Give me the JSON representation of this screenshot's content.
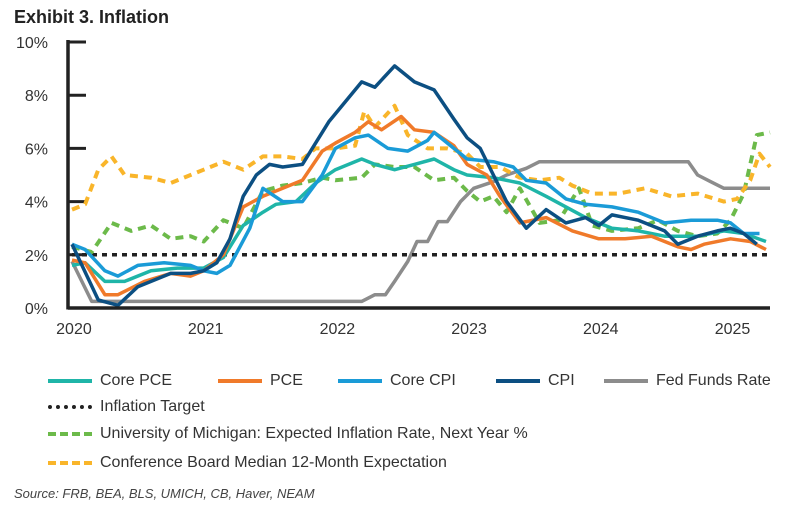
{
  "title": "Exhibit 3. Inflation",
  "source": "Source: FRB, BEA, BLS, UMICH, CB, Haver, NEAM",
  "chart_data": {
    "type": "line",
    "title": "Exhibit 3. Inflation",
    "xlabel": "",
    "ylabel": "",
    "xlim": [
      2019.97,
      2025.3
    ],
    "ylim": [
      0,
      10
    ],
    "xticks": [
      2020,
      2021,
      2022,
      2023,
      2024,
      2025
    ],
    "xtick_labels": [
      "2020",
      "2021",
      "2022",
      "2023",
      "2024",
      "2025"
    ],
    "yticks": [
      0,
      2,
      4,
      6,
      8,
      10
    ],
    "ytick_labels": [
      "0%",
      "2%",
      "4%",
      "6%",
      "8%",
      "10%"
    ],
    "legend_position": "bottom",
    "series": [
      {
        "name": "Core PCE",
        "color": "#1fb5a8",
        "style": "solid",
        "x": [
          2020.0,
          2020.1,
          2020.25,
          2020.4,
          2020.6,
          2020.8,
          2021.0,
          2021.15,
          2021.3,
          2021.45,
          2021.55,
          2021.7,
          2021.85,
          2022.0,
          2022.2,
          2022.3,
          2022.45,
          2022.6,
          2022.75,
          2022.9,
          2023.0,
          2023.2,
          2023.4,
          2023.6,
          2023.75,
          2023.9,
          2024.1,
          2024.3,
          2024.5,
          2024.75,
          2024.95,
          2025.1,
          2025.27
        ],
        "y": [
          1.6,
          1.7,
          1.0,
          1.0,
          1.4,
          1.5,
          1.5,
          1.9,
          3.1,
          3.6,
          3.9,
          4.0,
          4.7,
          5.2,
          5.6,
          5.4,
          5.2,
          5.4,
          5.6,
          5.2,
          5.0,
          4.9,
          4.7,
          4.2,
          3.8,
          3.4,
          3.0,
          2.9,
          2.7,
          2.7,
          2.9,
          2.8,
          2.5
        ]
      },
      {
        "name": "PCE",
        "color": "#f07a2a",
        "style": "solid",
        "x": [
          2020.0,
          2020.1,
          2020.25,
          2020.35,
          2020.55,
          2020.75,
          2020.9,
          2021.0,
          2021.15,
          2021.3,
          2021.45,
          2021.6,
          2021.75,
          2021.9,
          2022.0,
          2022.15,
          2022.25,
          2022.35,
          2022.5,
          2022.6,
          2022.75,
          2022.9,
          2023.0,
          2023.15,
          2023.25,
          2023.4,
          2023.6,
          2023.8,
          2024.0,
          2024.2,
          2024.4,
          2024.6,
          2024.7,
          2024.8,
          2025.0,
          2025.15,
          2025.27
        ],
        "y": [
          1.8,
          1.7,
          0.5,
          0.5,
          1.0,
          1.3,
          1.2,
          1.4,
          2.0,
          3.8,
          4.2,
          4.5,
          4.8,
          5.9,
          6.2,
          6.6,
          7.0,
          6.7,
          7.2,
          6.7,
          6.6,
          6.1,
          5.4,
          5.0,
          4.2,
          3.2,
          3.4,
          2.9,
          2.6,
          2.6,
          2.7,
          2.3,
          2.2,
          2.4,
          2.6,
          2.5,
          2.2
        ]
      },
      {
        "name": "Core CPI",
        "color": "#1a9bd7",
        "style": "solid",
        "x": [
          2020.0,
          2020.1,
          2020.25,
          2020.35,
          2020.5,
          2020.7,
          2020.9,
          2021.0,
          2021.1,
          2021.2,
          2021.35,
          2021.45,
          2021.6,
          2021.75,
          2021.9,
          2022.0,
          2022.15,
          2022.25,
          2022.4,
          2022.55,
          2022.7,
          2022.75,
          2022.9,
          2023.0,
          2023.2,
          2023.35,
          2023.45,
          2023.6,
          2023.75,
          2023.9,
          2024.1,
          2024.3,
          2024.5,
          2024.7,
          2024.9,
          2025.0,
          2025.1,
          2025.22
        ],
        "y": [
          2.4,
          2.2,
          1.4,
          1.2,
          1.6,
          1.7,
          1.6,
          1.4,
          1.3,
          1.6,
          3.0,
          4.5,
          4.0,
          4.0,
          5.0,
          6.0,
          6.4,
          6.5,
          6.0,
          5.9,
          6.3,
          6.6,
          6.0,
          5.6,
          5.5,
          5.3,
          4.8,
          4.7,
          4.1,
          3.9,
          3.8,
          3.6,
          3.2,
          3.3,
          3.3,
          3.2,
          2.8,
          2.8
        ]
      },
      {
        "name": "CPI",
        "color": "#0c4f82",
        "style": "solid",
        "x": [
          2020.0,
          2020.2,
          2020.35,
          2020.5,
          2020.75,
          2020.9,
          2021.0,
          2021.1,
          2021.2,
          2021.3,
          2021.4,
          2021.5,
          2021.6,
          2021.75,
          2021.85,
          2021.95,
          2022.1,
          2022.2,
          2022.3,
          2022.45,
          2022.6,
          2022.75,
          2022.9,
          2023.0,
          2023.1,
          2023.2,
          2023.3,
          2023.45,
          2023.6,
          2023.75,
          2023.9,
          2024.0,
          2024.1,
          2024.3,
          2024.5,
          2024.6,
          2024.75,
          2024.9,
          2025.0,
          2025.1,
          2025.2
        ],
        "y": [
          2.4,
          0.3,
          0.1,
          0.8,
          1.3,
          1.3,
          1.4,
          1.7,
          2.6,
          4.2,
          5.0,
          5.4,
          5.3,
          5.4,
          6.2,
          7.0,
          7.9,
          8.5,
          8.3,
          9.1,
          8.5,
          8.2,
          7.1,
          6.4,
          6.0,
          5.0,
          4.0,
          3.0,
          3.7,
          3.2,
          3.4,
          3.1,
          3.5,
          3.3,
          2.9,
          2.4,
          2.7,
          2.9,
          3.0,
          2.8,
          2.4
        ]
      },
      {
        "name": "Fed Funds Rate",
        "color": "#8c8c8c",
        "style": "solid",
        "x": [
          2020.0,
          2020.15,
          2020.2,
          2022.2,
          2022.3,
          2022.38,
          2022.45,
          2022.55,
          2022.62,
          2022.7,
          2022.78,
          2022.85,
          2022.95,
          2023.05,
          2023.2,
          2023.3,
          2023.45,
          2023.55,
          2024.68,
          2024.75,
          2024.85,
          2024.95,
          2025.3
        ],
        "y": [
          1.75,
          0.25,
          0.25,
          0.25,
          0.5,
          0.5,
          1.0,
          1.75,
          2.5,
          2.5,
          3.25,
          3.25,
          4.0,
          4.5,
          4.75,
          5.0,
          5.25,
          5.5,
          5.5,
          5.0,
          4.75,
          4.5,
          4.5
        ]
      },
      {
        "name": "Inflation Target",
        "color": "#222222",
        "style": "dotted",
        "x": [
          2020.0,
          2025.3
        ],
        "y": [
          2,
          2
        ]
      },
      {
        "name": "University of Michigan: Expected Inflation Rate, Next Year %",
        "color": "#6cba4a",
        "style": "dashed",
        "x": [
          2020.0,
          2020.15,
          2020.3,
          2020.45,
          2020.6,
          2020.75,
          2020.9,
          2021.0,
          2021.15,
          2021.3,
          2021.45,
          2021.6,
          2021.75,
          2021.9,
          2022.0,
          2022.2,
          2022.3,
          2022.45,
          2022.6,
          2022.75,
          2022.9,
          2023.0,
          2023.1,
          2023.2,
          2023.3,
          2023.4,
          2023.55,
          2023.7,
          2023.85,
          2023.95,
          2024.1,
          2024.3,
          2024.45,
          2024.6,
          2024.75,
          2024.9,
          2025.0,
          2025.1,
          2025.2,
          2025.3
        ],
        "y": [
          2.3,
          2.1,
          3.2,
          2.9,
          3.1,
          2.6,
          2.7,
          2.5,
          3.3,
          3.0,
          4.4,
          4.6,
          4.7,
          4.9,
          4.8,
          4.9,
          5.4,
          5.3,
          5.3,
          4.8,
          4.9,
          4.4,
          4.0,
          4.2,
          3.6,
          4.5,
          3.2,
          3.3,
          4.5,
          3.1,
          2.9,
          3.0,
          3.3,
          2.9,
          2.7,
          2.8,
          3.3,
          4.3,
          6.5,
          6.6
        ]
      },
      {
        "name": "Conference Board Median 12-Month Expectation",
        "color": "#f9b52a",
        "style": "dashed",
        "x": [
          2020.0,
          2020.1,
          2020.2,
          2020.3,
          2020.4,
          2020.6,
          2020.75,
          2021.0,
          2021.15,
          2021.3,
          2021.45,
          2021.6,
          2021.75,
          2021.85,
          2022.0,
          2022.15,
          2022.22,
          2022.3,
          2022.45,
          2022.55,
          2022.7,
          2022.85,
          2023.0,
          2023.1,
          2023.25,
          2023.4,
          2023.55,
          2023.7,
          2023.8,
          2023.95,
          2024.15,
          2024.35,
          2024.55,
          2024.75,
          2024.95,
          2025.05,
          2025.15,
          2025.22,
          2025.3
        ],
        "y": [
          3.7,
          3.9,
          5.2,
          5.7,
          5.0,
          4.9,
          4.7,
          5.2,
          5.5,
          5.2,
          5.7,
          5.7,
          5.6,
          6.0,
          6.0,
          6.1,
          7.4,
          6.8,
          7.6,
          6.5,
          6.0,
          6.0,
          5.8,
          5.3,
          5.3,
          4.9,
          4.8,
          4.9,
          4.6,
          4.3,
          4.3,
          4.5,
          4.2,
          4.3,
          4.0,
          4.1,
          4.8,
          5.8,
          5.3
        ]
      }
    ]
  }
}
